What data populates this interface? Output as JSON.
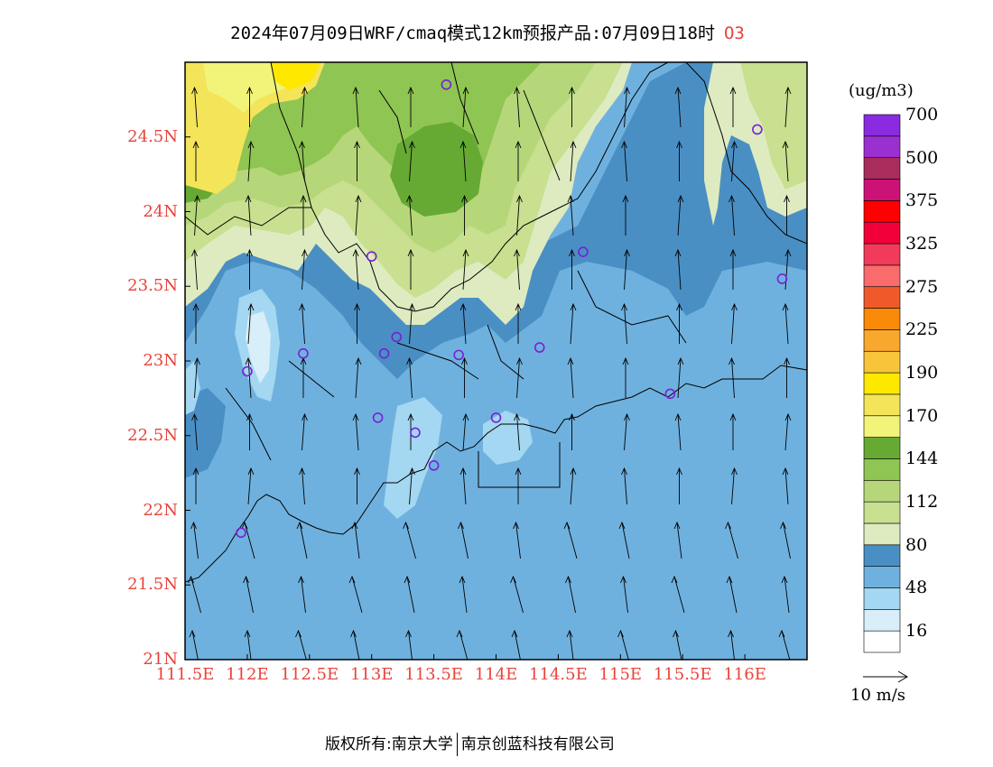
{
  "title": {
    "text": "2024年07月09日WRF/cmaq模式12km预报产品:07月09日18时",
    "variable": "O3"
  },
  "map": {
    "lat_ticks": [
      "21N",
      "21.5N",
      "22N",
      "22.5N",
      "23N",
      "23.5N",
      "24N",
      "24.5N"
    ],
    "lon_ticks": [
      "111.5E",
      "112E",
      "112.5E",
      "113E",
      "113.5E",
      "114E",
      "114.5E",
      "115E",
      "115.5E",
      "116E"
    ],
    "lat_range": [
      21,
      25
    ],
    "lon_range": [
      111.5,
      116.5
    ],
    "stations": [
      {
        "lon": 113.6,
        "lat": 24.85
      },
      {
        "lon": 116.1,
        "lat": 24.55
      },
      {
        "lon": 113.0,
        "lat": 23.7
      },
      {
        "lon": 114.7,
        "lat": 23.73
      },
      {
        "lon": 116.3,
        "lat": 23.55
      },
      {
        "lon": 113.2,
        "lat": 23.16
      },
      {
        "lon": 112.45,
        "lat": 23.05
      },
      {
        "lon": 113.1,
        "lat": 23.05
      },
      {
        "lon": 113.7,
        "lat": 23.04
      },
      {
        "lon": 114.35,
        "lat": 23.09
      },
      {
        "lon": 112.0,
        "lat": 22.93
      },
      {
        "lon": 115.4,
        "lat": 22.78
      },
      {
        "lon": 113.05,
        "lat": 22.62
      },
      {
        "lon": 113.35,
        "lat": 22.52
      },
      {
        "lon": 114.0,
        "lat": 22.62
      },
      {
        "lon": 113.5,
        "lat": 22.3
      },
      {
        "lon": 111.95,
        "lat": 21.85
      }
    ]
  },
  "legend": {
    "unit": "(ug/m3)",
    "colors": [
      "#ffffff",
      "#d8eef9",
      "#a3d7f2",
      "#6fb1de",
      "#4a8fc4",
      "#deebc0",
      "#c8e08f",
      "#b5d77a",
      "#8fc552",
      "#66aa33",
      "#f2f47a",
      "#f3e45a",
      "#ffe800",
      "#f8c43a",
      "#f8a82c",
      "#f98a0a",
      "#f05a2a",
      "#fa6b6b",
      "#f23a5a",
      "#f2003a",
      "#ff0000",
      "#cc1177",
      "#a82c5c",
      "#9b30d0",
      "#8a2be2"
    ],
    "labels": [
      "16",
      "48",
      "80",
      "112",
      "144",
      "170",
      "190",
      "225",
      "275",
      "325",
      "375",
      "500",
      "700"
    ]
  },
  "reference_vector": {
    "label": "10 m/s"
  },
  "copyright": {
    "prefix": "版权所有:",
    "org1": "南京大学",
    "org2": "南京创蓝科技有限公司"
  }
}
